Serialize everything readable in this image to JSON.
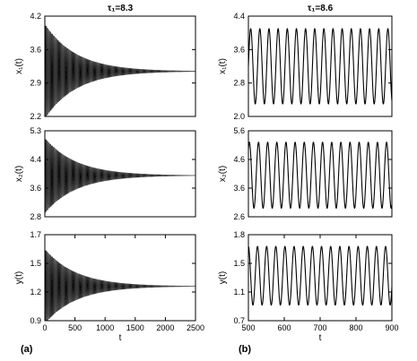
{
  "chart_data": [
    {
      "type": "line",
      "column": "left",
      "title": "τ₁=8.3",
      "ylabel": "x₁(t)",
      "xlabel": "",
      "xlim": [
        0,
        2500
      ],
      "ylim": [
        2.2,
        4.2
      ],
      "yticks": [
        "4.2",
        "3.6",
        "2.9",
        "2.2"
      ],
      "xticks": [],
      "series": [
        {
          "kind": "damped_oscillation",
          "equilibrium": 3.1,
          "initial_max": 4.15,
          "initial_min": 2.25,
          "decay_time": 520,
          "period": 14
        }
      ]
    },
    {
      "type": "line",
      "column": "left",
      "title": "",
      "ylabel": "x₂(t)",
      "xlabel": "",
      "xlim": [
        0,
        2500
      ],
      "ylim": [
        2.8,
        5.3
      ],
      "yticks": [
        "5.3",
        "4.4",
        "3.6",
        "2.8"
      ],
      "xticks": [],
      "series": [
        {
          "kind": "damped_oscillation",
          "equilibrium": 4.0,
          "initial_max": 5.2,
          "initial_min": 3.0,
          "decay_time": 520,
          "period": 14
        }
      ]
    },
    {
      "type": "line",
      "column": "left",
      "title": "",
      "ylabel": "y(t)",
      "xlabel": "t",
      "xlim": [
        0,
        2500
      ],
      "ylim": [
        0.9,
        1.7
      ],
      "yticks": [
        "1.7",
        "1.5",
        "1.2",
        "0.9"
      ],
      "xticks": [
        "0",
        "500",
        "1000",
        "1500",
        "2000",
        "2500"
      ],
      "series": [
        {
          "kind": "damped_oscillation",
          "equilibrium": 1.22,
          "initial_max": 1.65,
          "initial_min": 0.95,
          "decay_time": 520,
          "period": 14
        }
      ]
    },
    {
      "type": "line",
      "column": "right",
      "title": "τ₁=8.6",
      "ylabel": "x₁(t)",
      "xlabel": "",
      "xlim": [
        500,
        900
      ],
      "ylim": [
        2.0,
        4.4
      ],
      "yticks": [
        "4.4",
        "3.6",
        "2.8",
        "2.0"
      ],
      "xticks": [],
      "series": [
        {
          "kind": "sustained_oscillation",
          "max": 4.1,
          "min": 2.3,
          "period": 25.5,
          "phase": 0
        }
      ]
    },
    {
      "type": "line",
      "column": "right",
      "title": "",
      "ylabel": "x₂(t)",
      "xlabel": "",
      "xlim": [
        500,
        900
      ],
      "ylim": [
        2.6,
        5.6
      ],
      "yticks": [
        "5.6",
        "4.6",
        "3.6",
        "2.6"
      ],
      "xticks": [],
      "series": [
        {
          "kind": "sustained_oscillation",
          "max": 5.2,
          "min": 2.9,
          "period": 25.5,
          "phase": 0.9
        }
      ]
    },
    {
      "type": "line",
      "column": "right",
      "title": "",
      "ylabel": "y(t)",
      "xlabel": "t",
      "xlim": [
        500,
        900
      ],
      "ylim": [
        0.7,
        1.8
      ],
      "yticks": [
        "1.8",
        "1.5",
        "1.1",
        "0.7"
      ],
      "xticks": [
        "500",
        "600",
        "700",
        "800",
        "900"
      ],
      "series": [
        {
          "kind": "sustained_oscillation",
          "max": 1.65,
          "min": 0.9,
          "period": 25.5,
          "phase": 1.6
        }
      ]
    }
  ],
  "panel_labels": {
    "left": "(a)",
    "right": "(b)"
  },
  "colors": {
    "line": "#000000",
    "axes": "#000000",
    "background": "#ffffff"
  }
}
